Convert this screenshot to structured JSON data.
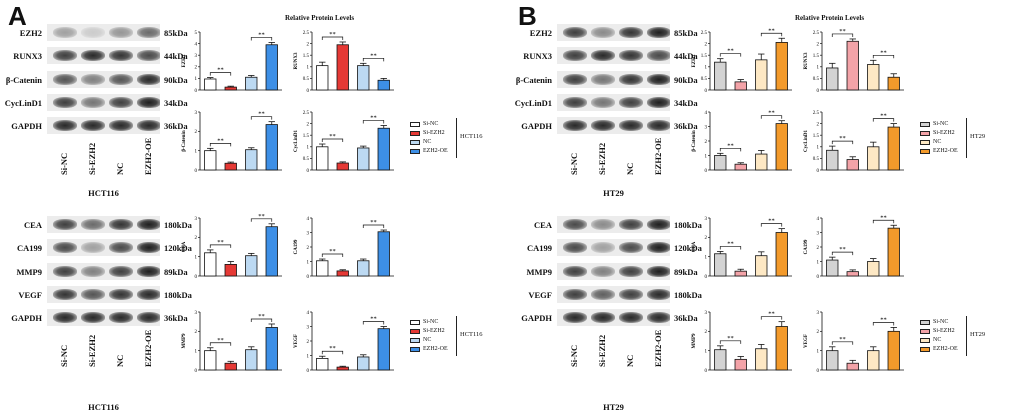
{
  "figure": {
    "panels": [
      {
        "letter": "A",
        "cell_line": "HCT116",
        "groups": [
          {
            "lanes": [
              "Si-NC",
              "Si-EZH2",
              "NC",
              "EZH2-OE"
            ],
            "blots": [
              {
                "protein": "EZH2",
                "kda": "85kDa",
                "bands": [
                  0.35,
                  0.15,
                  0.4,
                  0.6
                ]
              },
              {
                "protein": "RUNX3",
                "kda": "44kDa",
                "bands": [
                  0.8,
                  0.9,
                  0.85,
                  0.75
                ]
              },
              {
                "protein": "β-Catenin",
                "kda": "90kDa",
                "bands": [
                  0.7,
                  0.5,
                  0.7,
                  0.9
                ]
              },
              {
                "protein": "CycLinD1",
                "kda": "34kDa",
                "bands": [
                  0.8,
                  0.55,
                  0.8,
                  0.95
                ]
              },
              {
                "protein": "GAPDH",
                "kda": "36kDa",
                "bands": [
                  0.9,
                  0.9,
                  0.9,
                  0.9
                ]
              }
            ],
            "title": "Relative  Protein  Levels",
            "legend": [
              "Si-NC",
              "Si-EZH2",
              "NC",
              "EZH2-OE"
            ]
          },
          {
            "lanes": [
              "Si-NC",
              "Si-EZH2",
              "NC",
              "EZH2-OE"
            ],
            "blots": [
              {
                "protein": "CEA",
                "kda": "180kDa",
                "bands": [
                  0.8,
                  0.6,
                  0.85,
                  0.95
                ]
              },
              {
                "protein": "CA199",
                "kda": "120kDa",
                "bands": [
                  0.75,
                  0.35,
                  0.75,
                  0.95
                ]
              },
              {
                "protein": "MMP9",
                "kda": "89kDa",
                "bands": [
                  0.8,
                  0.5,
                  0.8,
                  0.95
                ]
              },
              {
                "protein": "VEGF",
                "kda": "180kDa",
                "bands": [
                  0.85,
                  0.7,
                  0.85,
                  0.9
                ]
              },
              {
                "protein": "GAPDH",
                "kda": "36kDa",
                "bands": [
                  0.9,
                  0.9,
                  0.9,
                  0.9
                ]
              }
            ],
            "title": "",
            "legend": [
              "Si-NC",
              "Si-EZH2",
              "NC",
              "EZH2-OE"
            ]
          }
        ]
      },
      {
        "letter": "B",
        "cell_line": "HT29",
        "groups": [
          {
            "lanes": [
              "Si-NC",
              "Si-EZH2",
              "NC",
              "EZH2-OE"
            ],
            "blots": [
              {
                "protein": "EZH2",
                "kda": "85kDa",
                "bands": [
                  0.8,
                  0.45,
                  0.85,
                  0.95
                ]
              },
              {
                "protein": "RUNX3",
                "kda": "44kDa",
                "bands": [
                  0.8,
                  0.9,
                  0.85,
                  0.75
                ]
              },
              {
                "protein": "β-Catenin",
                "kda": "90kDa",
                "bands": [
                  0.8,
                  0.55,
                  0.85,
                  0.95
                ]
              },
              {
                "protein": "CycLinD1",
                "kda": "34kDa",
                "bands": [
                  0.8,
                  0.55,
                  0.8,
                  0.95
                ]
              },
              {
                "protein": "GAPDH",
                "kda": "36kDa",
                "bands": [
                  0.9,
                  0.9,
                  0.9,
                  0.9
                ]
              }
            ],
            "title": "Relative  Protein  Levels",
            "legend": [
              "Si-NC",
              "Si-EZH2",
              "NC",
              "EZH2-OE"
            ]
          },
          {
            "lanes": [
              "Si-NC",
              "Si-EZH2",
              "NC",
              "EZH2-OE"
            ],
            "blots": [
              {
                "protein": "CEA",
                "kda": "180kDa",
                "bands": [
                  0.75,
                  0.45,
                  0.8,
                  0.95
                ]
              },
              {
                "protein": "CA199",
                "kda": "120kDa",
                "bands": [
                  0.75,
                  0.35,
                  0.75,
                  0.95
                ]
              },
              {
                "protein": "MMP9",
                "kda": "89kDa",
                "bands": [
                  0.8,
                  0.5,
                  0.8,
                  0.95
                ]
              },
              {
                "protein": "VEGF",
                "kda": "180kDa",
                "bands": [
                  0.8,
                  0.65,
                  0.8,
                  0.9
                ]
              },
              {
                "protein": "GAPDH",
                "kda": "36kDa",
                "bands": [
                  0.9,
                  0.9,
                  0.9,
                  0.9
                ]
              }
            ],
            "title": "",
            "legend": [
              "Si-NC",
              "Si-EZH2",
              "NC",
              "EZH2-OE"
            ]
          }
        ]
      }
    ]
  },
  "colors": {
    "A": [
      "#ffffff",
      "#e53935",
      "#bcd9f2",
      "#3d8fe6"
    ],
    "B": [
      "#d3d3d3",
      "#f3a3a8",
      "#fde8c4",
      "#f39a2b"
    ]
  },
  "chart_data": [
    {
      "panel": "A",
      "type": "bar",
      "ylabel": "EZH2",
      "categories": [
        "Si-NC",
        "Si-EZH2",
        "NC",
        "EZH2-OE"
      ],
      "values": [
        0.95,
        0.25,
        1.1,
        3.9
      ],
      "errors": [
        0.12,
        0.08,
        0.15,
        0.2
      ],
      "ylim": [
        0,
        5
      ],
      "ticks": [
        0,
        1,
        2,
        3,
        4,
        5
      ],
      "sig": [
        [
          0,
          1,
          "**"
        ],
        [
          2,
          3,
          "**"
        ]
      ]
    },
    {
      "panel": "A",
      "type": "bar",
      "ylabel": "RUNX3",
      "categories": [
        "Si-NC",
        "Si-EZH2",
        "NC",
        "EZH2-OE"
      ],
      "values": [
        1.05,
        1.95,
        1.05,
        0.42
      ],
      "errors": [
        0.15,
        0.12,
        0.1,
        0.08
      ],
      "ylim": [
        0,
        2.5
      ],
      "ticks": [
        0.0,
        0.5,
        1.0,
        1.5,
        2.0,
        2.5
      ],
      "sig": [
        [
          0,
          1,
          "**"
        ],
        [
          2,
          3,
          "**"
        ]
      ]
    },
    {
      "panel": "A",
      "type": "bar",
      "ylabel": "β-Catenin",
      "categories": [
        "Si-NC",
        "Si-EZH2",
        "NC",
        "EZH2-OE"
      ],
      "values": [
        1.0,
        0.35,
        1.05,
        2.35
      ],
      "errors": [
        0.12,
        0.06,
        0.1,
        0.15
      ],
      "ylim": [
        0,
        3
      ],
      "ticks": [
        0,
        1,
        2,
        3
      ],
      "sig": [
        [
          0,
          1,
          "**"
        ],
        [
          2,
          3,
          "**"
        ]
      ]
    },
    {
      "panel": "A",
      "type": "bar",
      "ylabel": "CycLinD1",
      "categories": [
        "Si-NC",
        "Si-EZH2",
        "NC",
        "EZH2-OE"
      ],
      "values": [
        1.0,
        0.3,
        0.95,
        1.8
      ],
      "errors": [
        0.12,
        0.05,
        0.08,
        0.12
      ],
      "ylim": [
        0,
        2.5
      ],
      "ticks": [
        0.0,
        0.5,
        1.0,
        1.5,
        2.0,
        2.5
      ],
      "sig": [
        [
          0,
          1,
          "**"
        ],
        [
          2,
          3,
          "**"
        ]
      ]
    },
    {
      "panel": "A",
      "type": "bar",
      "ylabel": "CEA",
      "categories": [
        "Si-NC",
        "Si-EZH2",
        "NC",
        "EZH2-OE"
      ],
      "values": [
        1.2,
        0.6,
        1.05,
        2.55
      ],
      "errors": [
        0.15,
        0.15,
        0.12,
        0.15
      ],
      "ylim": [
        0,
        3
      ],
      "ticks": [
        0,
        1,
        2,
        3
      ],
      "sig": [
        [
          0,
          1,
          "**"
        ],
        [
          2,
          3,
          "**"
        ]
      ]
    },
    {
      "panel": "A",
      "type": "bar",
      "ylabel": "CA199",
      "categories": [
        "Si-NC",
        "Si-EZH2",
        "NC",
        "EZH2-OE"
      ],
      "values": [
        1.05,
        0.35,
        1.05,
        3.05
      ],
      "errors": [
        0.12,
        0.08,
        0.12,
        0.12
      ],
      "ylim": [
        0,
        4
      ],
      "ticks": [
        0,
        1,
        2,
        3,
        4
      ],
      "sig": [
        [
          0,
          1,
          "**"
        ],
        [
          2,
          3,
          "**"
        ]
      ]
    },
    {
      "panel": "A",
      "type": "bar",
      "ylabel": "MMP9",
      "categories": [
        "Si-NC",
        "Si-EZH2",
        "NC",
        "EZH2-OE"
      ],
      "values": [
        1.0,
        0.35,
        1.05,
        2.2
      ],
      "errors": [
        0.15,
        0.1,
        0.15,
        0.18
      ],
      "ylim": [
        0,
        3
      ],
      "ticks": [
        0,
        1,
        2,
        3
      ],
      "sig": [
        [
          0,
          1,
          "**"
        ],
        [
          2,
          3,
          "**"
        ]
      ]
    },
    {
      "panel": "A",
      "type": "bar",
      "ylabel": "VEGF",
      "categories": [
        "Si-NC",
        "Si-EZH2",
        "NC",
        "EZH2-OE"
      ],
      "values": [
        0.8,
        0.2,
        0.9,
        2.85
      ],
      "errors": [
        0.15,
        0.06,
        0.15,
        0.15
      ],
      "ylim": [
        0,
        4
      ],
      "ticks": [
        0,
        1,
        2,
        3,
        4
      ],
      "sig": [
        [
          0,
          1,
          "**"
        ],
        [
          2,
          3,
          "**"
        ]
      ]
    },
    {
      "panel": "B",
      "type": "bar",
      "ylabel": "EZH2",
      "categories": [
        "Si-NC",
        "Si-EZH2",
        "NC",
        "EZH2-OE"
      ],
      "values": [
        1.2,
        0.35,
        1.3,
        2.05
      ],
      "errors": [
        0.15,
        0.1,
        0.25,
        0.18
      ],
      "ylim": [
        0,
        2.5
      ],
      "ticks": [
        0.0,
        0.5,
        1.0,
        1.5,
        2.0,
        2.5
      ],
      "sig": [
        [
          0,
          1,
          "**"
        ],
        [
          2,
          3,
          "**"
        ]
      ]
    },
    {
      "panel": "B",
      "type": "bar",
      "ylabel": "RUNX3",
      "categories": [
        "Si-NC",
        "Si-EZH2",
        "NC",
        "EZH2-OE"
      ],
      "values": [
        0.95,
        2.1,
        1.1,
        0.55
      ],
      "errors": [
        0.2,
        0.1,
        0.18,
        0.15
      ],
      "ylim": [
        0,
        2.5
      ],
      "ticks": [
        0.0,
        0.5,
        1.0,
        1.5,
        2.0,
        2.5
      ],
      "sig": [
        [
          0,
          1,
          "**"
        ],
        [
          2,
          3,
          "**"
        ]
      ]
    },
    {
      "panel": "B",
      "type": "bar",
      "ylabel": "β-Catenin",
      "categories": [
        "Si-NC",
        "Si-EZH2",
        "NC",
        "EZH2-OE"
      ],
      "values": [
        1.0,
        0.4,
        1.1,
        3.2
      ],
      "errors": [
        0.15,
        0.1,
        0.25,
        0.2
      ],
      "ylim": [
        0,
        4
      ],
      "ticks": [
        0,
        1,
        2,
        3,
        4
      ],
      "sig": [
        [
          0,
          1,
          "**"
        ],
        [
          2,
          3,
          "**"
        ]
      ]
    },
    {
      "panel": "B",
      "type": "bar",
      "ylabel": "CycLinD1",
      "categories": [
        "Si-NC",
        "Si-EZH2",
        "NC",
        "EZH2-OE"
      ],
      "values": [
        0.85,
        0.45,
        1.0,
        1.85
      ],
      "errors": [
        0.18,
        0.12,
        0.2,
        0.15
      ],
      "ylim": [
        0,
        2.5
      ],
      "ticks": [
        0.0,
        0.5,
        1.0,
        1.5,
        2.0,
        2.5
      ],
      "sig": [
        [
          0,
          1,
          "**"
        ],
        [
          2,
          3,
          "**"
        ]
      ]
    },
    {
      "panel": "B",
      "type": "bar",
      "ylabel": "CEA",
      "categories": [
        "Si-NC",
        "Si-EZH2",
        "NC",
        "EZH2-OE"
      ],
      "values": [
        1.15,
        0.25,
        1.05,
        2.25
      ],
      "errors": [
        0.12,
        0.1,
        0.2,
        0.2
      ],
      "ylim": [
        0,
        3
      ],
      "ticks": [
        0,
        1,
        2,
        3
      ],
      "sig": [
        [
          0,
          1,
          "**"
        ],
        [
          2,
          3,
          "**"
        ]
      ]
    },
    {
      "panel": "B",
      "type": "bar",
      "ylabel": "CA199",
      "categories": [
        "Si-NC",
        "Si-EZH2",
        "NC",
        "EZH2-OE"
      ],
      "values": [
        1.1,
        0.3,
        1.0,
        3.3
      ],
      "errors": [
        0.2,
        0.12,
        0.2,
        0.2
      ],
      "ylim": [
        0,
        4
      ],
      "ticks": [
        0,
        1,
        2,
        3,
        4
      ],
      "sig": [
        [
          0,
          1,
          "**"
        ],
        [
          2,
          3,
          "**"
        ]
      ]
    },
    {
      "panel": "B",
      "type": "bar",
      "ylabel": "MMP9",
      "categories": [
        "Si-NC",
        "Si-EZH2",
        "NC",
        "EZH2-OE"
      ],
      "values": [
        1.05,
        0.55,
        1.1,
        2.25
      ],
      "errors": [
        0.2,
        0.15,
        0.22,
        0.25
      ],
      "ylim": [
        0,
        3
      ],
      "ticks": [
        0,
        1,
        2,
        3
      ],
      "sig": [
        [
          0,
          1,
          "**"
        ],
        [
          2,
          3,
          "**"
        ]
      ]
    },
    {
      "panel": "B",
      "type": "bar",
      "ylabel": "VEGF",
      "categories": [
        "Si-NC",
        "Si-EZH2",
        "NC",
        "EZH2-OE"
      ],
      "values": [
        1.0,
        0.35,
        1.0,
        2.0
      ],
      "errors": [
        0.2,
        0.15,
        0.2,
        0.2
      ],
      "ylim": [
        0,
        3
      ],
      "ticks": [
        0,
        1,
        2,
        3
      ],
      "sig": [
        [
          0,
          1,
          "**"
        ],
        [
          2,
          3,
          "**"
        ]
      ]
    }
  ]
}
